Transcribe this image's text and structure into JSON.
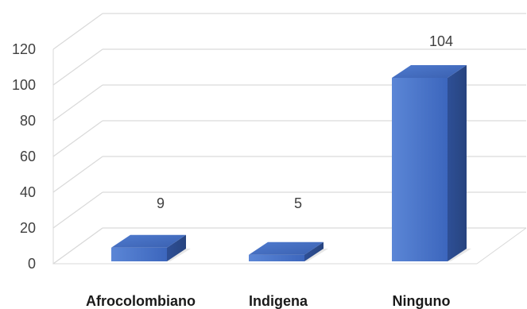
{
  "chart_data": {
    "type": "bar",
    "three_d": true,
    "categories": [
      "Afrocolombiano",
      "Indigena",
      "Ninguno"
    ],
    "values": [
      9,
      5,
      104
    ],
    "data_labels": [
      "9",
      "5",
      "104"
    ],
    "ylim": [
      0,
      120
    ],
    "yticks": [
      0,
      20,
      40,
      60,
      80,
      100,
      120
    ],
    "grid": true,
    "legend": "none",
    "bar_color": "#4472C4"
  }
}
